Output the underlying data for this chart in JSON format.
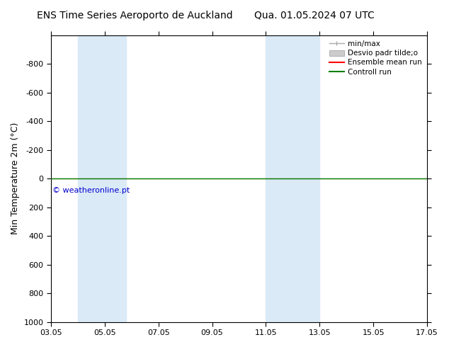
{
  "title_left": "ENS Time Series Aeroporto de Auckland",
  "title_right": "Qua. 01.05.2024 07 UTC",
  "ylabel": "Min Temperature 2m (°C)",
  "ylim_bottom": 1000,
  "ylim_top": -1000,
  "yticks": [
    -800,
    -600,
    -400,
    -200,
    0,
    200,
    400,
    600,
    800,
    1000
  ],
  "xlim_min": 3,
  "xlim_max": 17,
  "xtick_positions": [
    3,
    5,
    7,
    9,
    11,
    13,
    15,
    17
  ],
  "xtick_labels": [
    "03.05",
    "05.05",
    "07.05",
    "09.05",
    "11.05",
    "13.05",
    "15.05",
    "17.05"
  ],
  "shaded_columns": [
    [
      4.0,
      5.0
    ],
    [
      5.0,
      5.8
    ],
    [
      11.0,
      12.0
    ],
    [
      12.0,
      13.0
    ]
  ],
  "shaded_color": "#daeaf7",
  "green_line_y": 0,
  "red_line_y": 0,
  "legend_minmax_label": "min/max",
  "legend_desvio_label": "Desvio padr tilde;o",
  "legend_ensemble_label": "Ensemble mean run",
  "legend_controll_label": "Controll run",
  "copyright_text": "© weatheronline.pt",
  "copyright_color": "#0000cc",
  "background_color": "#ffffff",
  "title_fontsize": 10,
  "axis_label_fontsize": 9,
  "tick_fontsize": 8,
  "legend_fontsize": 7.5
}
